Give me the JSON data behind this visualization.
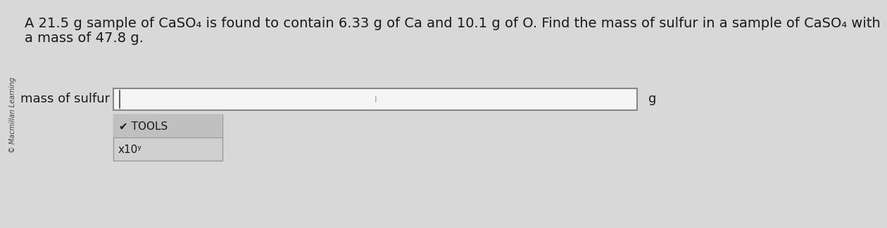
{
  "background_color": "#d8d8d8",
  "page_color": "#e8e8e8",
  "title_line1": "A 21.5 g sample of CaSO₄ is found to contain 6.33 g of Ca and 10.1 g of O. Find the mass of sulfur in a sample of CaSO₄ with",
  "title_line2": "a mass of 47.8 g.",
  "label_text": "mass of sulfur =",
  "unit_text": "g",
  "tools_text": "✔ TOOLS",
  "x10_text": "x10ʸ",
  "watermark_text": "© Macmillan Learning",
  "input_box_facecolor": "#f5f5f5",
  "input_box_edgecolor": "#888888",
  "tools_box_facecolor": "#d0d0d0",
  "tools_box_edgecolor": "#999999",
  "tools_top_facecolor": "#c0c0c0",
  "text_color": "#1a1a1a",
  "font_size_body": 14,
  "font_size_label": 13,
  "font_size_tools": 11,
  "font_size_watermark": 7,
  "watermark_color": "#444444"
}
